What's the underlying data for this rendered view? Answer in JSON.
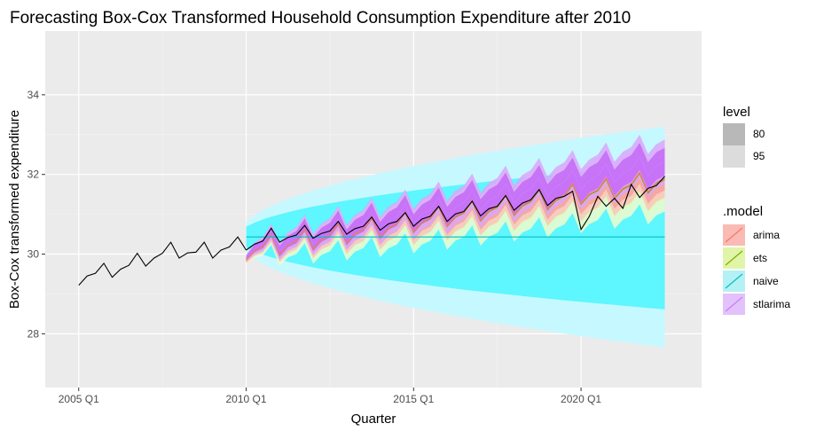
{
  "chart_data": {
    "type": "line",
    "title": "Forecasting Box-Cox Transformed Household Consumption Expenditure after 2010",
    "xlabel": "Quarter",
    "ylabel": "Box-Cox transformed expenditure",
    "x_ticks": [
      "2005 Q1",
      "2010 Q1",
      "2015 Q1",
      "2020 Q1"
    ],
    "y_ticks": [
      28,
      30,
      32,
      34
    ],
    "xlim": [
      2004.0,
      2023.6
    ],
    "ylim": [
      26.65,
      35.6
    ],
    "grid": true,
    "legend_level": {
      "title": "level",
      "entries": [
        {
          "label": "80",
          "color": "#b8b8b8"
        },
        {
          "label": "95",
          "color": "#dcdcdc"
        }
      ]
    },
    "legend_model": {
      "title": ".model",
      "entries": [
        {
          "label": "arima",
          "color": "#f8766d"
        },
        {
          "label": "ets",
          "color": "#7cae00"
        },
        {
          "label": "naive",
          "color": "#00bfc4"
        },
        {
          "label": "stlarima",
          "color": "#c77cff"
        }
      ]
    },
    "history": {
      "start": 2005.0,
      "values": [
        29.22,
        29.45,
        29.52,
        29.77,
        29.42,
        29.62,
        29.72,
        30.02,
        29.7,
        29.9,
        30.02,
        30.3,
        29.9,
        30.03,
        30.05,
        30.3,
        29.9,
        30.1,
        30.18,
        30.43,
        30.1
      ]
    },
    "actual": {
      "start": 2010.0,
      "values": [
        30.1,
        30.25,
        30.33,
        30.65,
        30.3,
        30.42,
        30.48,
        30.72,
        30.4,
        30.52,
        30.58,
        30.82,
        30.5,
        30.64,
        30.7,
        30.93,
        30.6,
        30.76,
        30.82,
        31.04,
        30.7,
        30.88,
        30.95,
        31.2,
        30.82,
        31.01,
        31.07,
        31.33,
        30.96,
        31.14,
        31.2,
        31.47,
        31.1,
        31.28,
        31.36,
        31.62,
        31.22,
        31.4,
        31.45,
        31.58,
        30.62,
        30.95,
        31.45,
        31.2,
        31.4,
        31.15,
        31.75,
        31.42,
        31.65,
        31.72,
        31.95
      ]
    },
    "forecast": {
      "start": 2010.0,
      "end": 2022.5,
      "series": [
        {
          "name": "naive",
          "color": "#00bfc4",
          "point": 30.43,
          "sd_growth": 1.18,
          "band80_color": "#5ef6ff",
          "band95_color": "#c6f9ff"
        },
        {
          "name": "ets",
          "color": "#7cae00",
          "start_value": 30.1,
          "end_value": 31.85,
          "seasonal_amp": [
            -0.25,
            -0.05,
            0.02,
            0.28
          ],
          "band_width_start": 0.05,
          "band_width_end": 0.5,
          "band80_color": "#e2f7b0",
          "band95_color": "#f0fccc"
        },
        {
          "name": "arima",
          "color": "#f8766d",
          "start_value": 30.1,
          "end_value": 31.88,
          "seasonal_amp": [
            -0.25,
            -0.05,
            0.02,
            0.28
          ],
          "band_width_start": 0.05,
          "band_width_end": 0.3,
          "band80_color": "#f6a49a",
          "band95_color": "#f9c5be"
        },
        {
          "name": "stlarima",
          "color": "#c77cff",
          "start_value": 30.15,
          "end_value": 32.3,
          "seasonal_amp": [
            -0.25,
            -0.05,
            0.02,
            0.28
          ],
          "band_width_start": 0.05,
          "band_width_end": 0.35,
          "band80_color": "#c56df7",
          "band95_color": "#dba6fb"
        }
      ]
    }
  }
}
